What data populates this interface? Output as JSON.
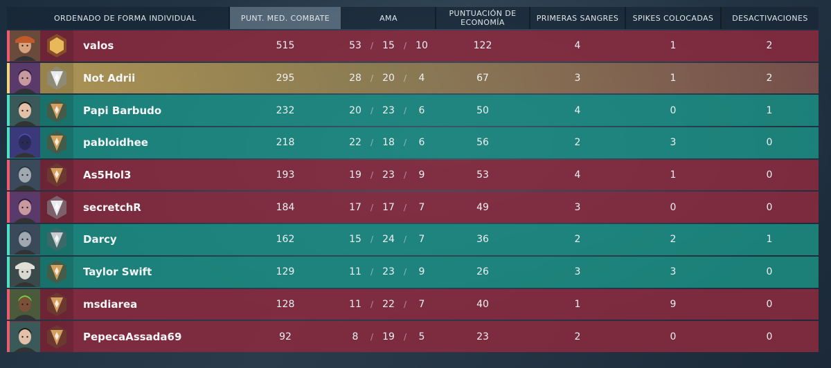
{
  "header": {
    "sort_label": "ORDENADO DE FORMA INDIVIDUAL",
    "acs": "PUNT. MED. COMBATE",
    "kda": "AMA",
    "econ": "PUNTUACIÓN DE ECONOMÍA",
    "first_bloods": "PRIMERAS SANGRES",
    "plants": "SPIKES COLOCADAS",
    "defuses": "DESACTIVACIONES"
  },
  "colors": {
    "enemy": "#8c2a3e",
    "ally": "#1c8e84",
    "self": "#bca058"
  },
  "players": [
    {
      "name": "valos",
      "team": "red",
      "acs": "515",
      "k": "53",
      "d": "15",
      "a": "10",
      "econ": "122",
      "fb": "4",
      "plants": "1",
      "defuses": "2",
      "agent_icon": "agent-brimstone-icon",
      "rank_icon": "rank-gold-icon"
    },
    {
      "name": "Not Adrii",
      "team": "gold",
      "acs": "295",
      "k": "28",
      "d": "20",
      "a": "4",
      "econ": "67",
      "fb": "3",
      "plants": "1",
      "defuses": "2",
      "agent_icon": "agent-reyna-icon",
      "rank_icon": "rank-silver-icon"
    },
    {
      "name": "Papi Barbudo",
      "team": "teal",
      "acs": "232",
      "k": "20",
      "d": "23",
      "a": "6",
      "econ": "50",
      "fb": "4",
      "plants": "0",
      "defuses": "1",
      "agent_icon": "agent-sage-icon",
      "rank_icon": "rank-bronze-icon"
    },
    {
      "name": "pabloidhee",
      "team": "teal",
      "acs": "218",
      "k": "22",
      "d": "18",
      "a": "6",
      "econ": "56",
      "fb": "2",
      "plants": "3",
      "defuses": "0",
      "agent_icon": "agent-omen-icon",
      "rank_icon": "rank-bronze-icon"
    },
    {
      "name": "As5Hol3",
      "team": "red",
      "acs": "193",
      "k": "19",
      "d": "23",
      "a": "9",
      "econ": "53",
      "fb": "4",
      "plants": "1",
      "defuses": "0",
      "agent_icon": "agent-kayo-icon",
      "rank_icon": "rank-bronze-icon"
    },
    {
      "name": "secretchR",
      "team": "red",
      "acs": "184",
      "k": "17",
      "d": "17",
      "a": "7",
      "econ": "49",
      "fb": "3",
      "plants": "0",
      "defuses": "0",
      "agent_icon": "agent-reyna-icon",
      "rank_icon": "rank-silver-icon"
    },
    {
      "name": "Darcy",
      "team": "teal",
      "acs": "162",
      "k": "15",
      "d": "24",
      "a": "7",
      "econ": "36",
      "fb": "2",
      "plants": "2",
      "defuses": "1",
      "agent_icon": "agent-kayo-icon",
      "rank_icon": "rank-iron-icon"
    },
    {
      "name": "Taylor Swift",
      "team": "teal",
      "acs": "129",
      "k": "11",
      "d": "23",
      "a": "9",
      "econ": "26",
      "fb": "3",
      "plants": "3",
      "defuses": "0",
      "agent_icon": "agent-cypher-icon",
      "rank_icon": "rank-bronze-icon"
    },
    {
      "name": "msdiarea",
      "team": "red",
      "acs": "128",
      "k": "11",
      "d": "22",
      "a": "7",
      "econ": "40",
      "fb": "1",
      "plants": "9",
      "defuses": "0",
      "agent_icon": "agent-raze-icon",
      "rank_icon": "rank-bronze-icon"
    },
    {
      "name": "PepecaAssada69",
      "team": "red",
      "acs": "92",
      "k": "8",
      "d": "19",
      "a": "5",
      "econ": "23",
      "fb": "2",
      "plants": "0",
      "defuses": "0",
      "agent_icon": "agent-sage-icon",
      "rank_icon": "rank-bronze-icon"
    }
  ]
}
